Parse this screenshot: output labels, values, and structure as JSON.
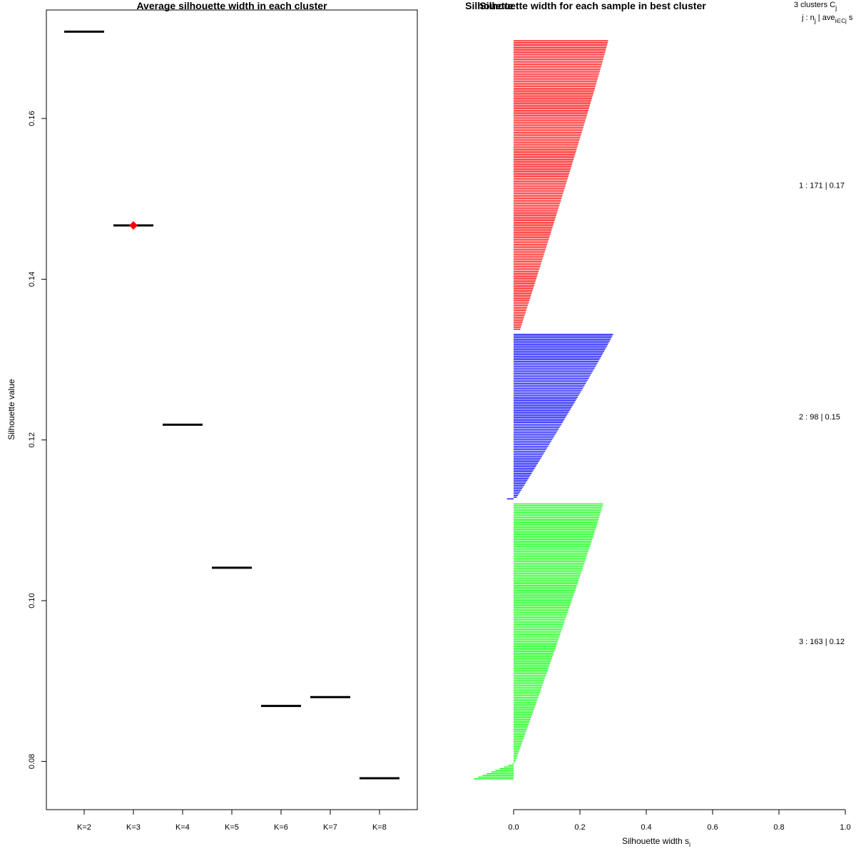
{
  "chart_data": [
    {
      "type": "scatter",
      "title": "Average silhouette width in each cluster",
      "xlabel": "",
      "ylabel": "Silhouette value",
      "categories": [
        "K=2",
        "K=3",
        "K=4",
        "K=5",
        "K=6",
        "K=7",
        "K=8"
      ],
      "values": [
        0.1708,
        0.1467,
        0.1219,
        0.1041,
        0.0869,
        0.088,
        0.0779
      ],
      "best_k": "K=3",
      "best_marker_color": "#ff0000",
      "ylim": [
        0.074,
        0.1735
      ],
      "yticks": [
        0.08,
        0.1,
        0.12,
        0.14,
        0.16
      ],
      "ytick_labels": [
        "0.08",
        "0.10",
        "0.12",
        "0.14",
        "0.16"
      ]
    },
    {
      "type": "bar",
      "orientation": "horizontal",
      "title": "Silhouette width for each sample in best cluster",
      "overlap_title": "Silhouette",
      "xlabel_main": "Silhouette width s",
      "xlabel_sub": "i",
      "xlim": [
        0.0,
        1.0
      ],
      "xticks": [
        0.0,
        0.2,
        0.4,
        0.6,
        0.8,
        1.0
      ],
      "xtick_labels": [
        "0.0",
        "0.2",
        "0.4",
        "0.6",
        "0.8",
        "1.0"
      ],
      "legend_header": {
        "line1": "3 clusters C",
        "line1_sub": "j",
        "line2_a": "j : n",
        "line2_sub_a": "j",
        "line2_b": " | ave",
        "line2_sub_b": "i∈Cj",
        "line2_c": " s"
      },
      "clusters": [
        {
          "label": "1 :  171  |  0.17",
          "id": 1,
          "n": 171,
          "avg": 0.17,
          "color": "#ff0000",
          "max": 0.285,
          "min": 0.02,
          "neg_count": 0,
          "neg_min": 0.0
        },
        {
          "label": "2 :  98  |  0.15",
          "id": 2,
          "n": 98,
          "avg": 0.15,
          "color": "#0000ff",
          "max": 0.3,
          "min": 0.01,
          "neg_count": 1,
          "neg_min": -0.02
        },
        {
          "label": "3 :  163  |  0.12",
          "id": 3,
          "n": 163,
          "avg": 0.12,
          "color": "#00ff00",
          "max": 0.27,
          "min": 0.005,
          "neg_count": 10,
          "neg_min": -0.12
        }
      ]
    }
  ]
}
